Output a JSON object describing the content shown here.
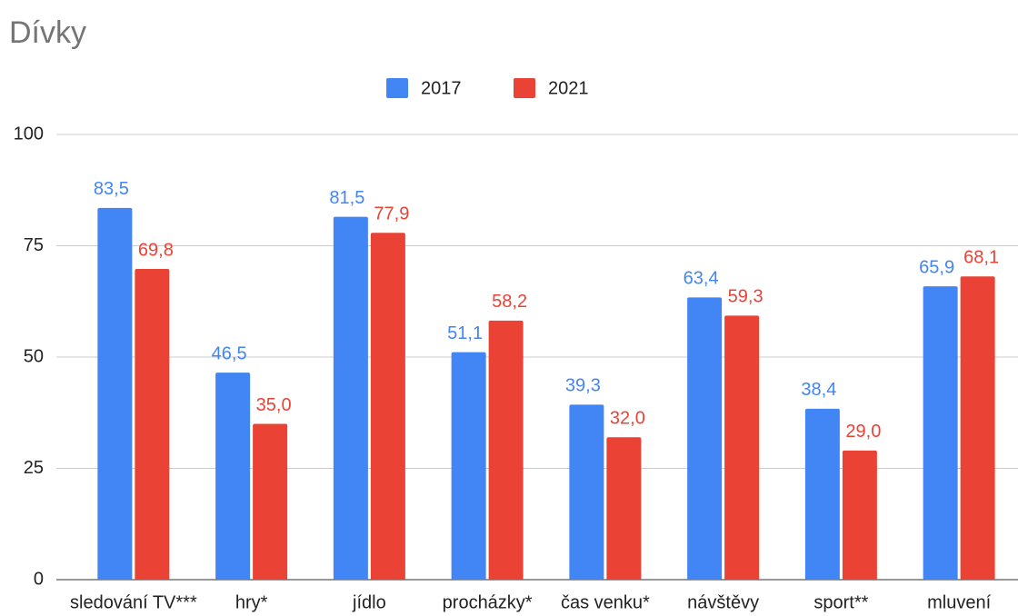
{
  "chart_data": {
    "type": "bar",
    "title": "Dívky",
    "categories": [
      "sledování TV***",
      "hry*",
      "jídlo",
      "procházky*",
      "čas venku*",
      "návštěvy",
      "sport**",
      "mluvení"
    ],
    "series": [
      {
        "name": "2017",
        "color": "#4285f4",
        "values": [
          83.5,
          46.5,
          81.5,
          51.1,
          39.3,
          63.4,
          38.4,
          65.9
        ],
        "value_labels": [
          "83,5",
          "46,5",
          "81,5",
          "51,1",
          "39,3",
          "63,4",
          "38,4",
          "65,9"
        ]
      },
      {
        "name": "2021",
        "color": "#ea4335",
        "values": [
          69.8,
          35.0,
          77.9,
          58.2,
          32.0,
          59.3,
          29.0,
          68.1
        ],
        "value_labels": [
          "69,8",
          "35,0",
          "77,9",
          "58,2",
          "32,0",
          "59,3",
          "29,0",
          "68,1"
        ]
      }
    ],
    "ylim": [
      0,
      100
    ],
    "yticks": [
      0,
      25,
      50,
      75,
      100
    ],
    "grid": true,
    "legend": "top"
  }
}
